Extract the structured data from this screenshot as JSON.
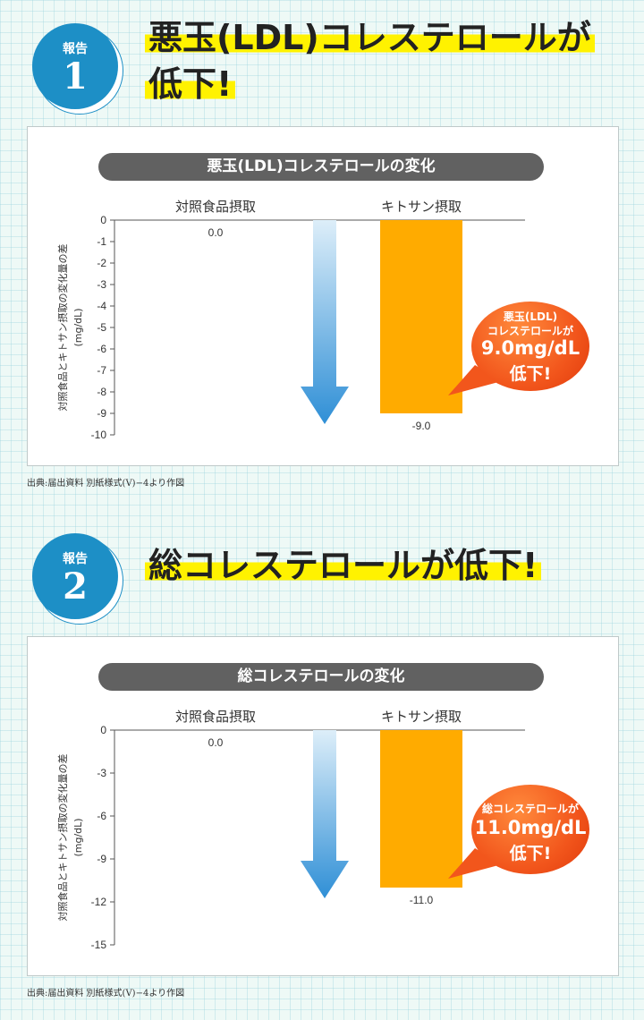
{
  "reports": [
    {
      "badge_label": "報告",
      "badge_number": "1",
      "headline_line1": "悪玉(LDL)コレステロールが",
      "headline_line2": "低下!",
      "chart_title": "悪玉(LDL)コレステロールの変化",
      "source": "出典:届出資料 別紙様式(V)−4より作図",
      "callout": {
        "line1": "悪玉(LDL)",
        "line2": "コレステロールが",
        "big": "9.0mg/dL",
        "line4": "低下!"
      }
    },
    {
      "badge_label": "報告",
      "badge_number": "2",
      "headline_line1": "総コレステロールが低下!",
      "chart_title": "総コレステロールの変化",
      "source": "出典:届出資料 別紙様式(V)−4より作図",
      "callout": {
        "line1": "総コレステロールが",
        "big": "11.0mg/dL",
        "line4": "低下!"
      }
    }
  ],
  "colors": {
    "badge": "#1d8fc6",
    "highlight": "#fff200",
    "bar": "#ffab00",
    "arrow": "#2f8fd6",
    "callout": "#f2561c",
    "pill": "#616161"
  },
  "chart_data": [
    {
      "type": "bar",
      "title": "悪玉(LDL)コレステロールの変化",
      "categories": [
        "対照食品摂取",
        "キトサン摂取"
      ],
      "values": [
        0.0,
        -9.0
      ],
      "value_labels": [
        "0.0",
        "-9.0"
      ],
      "ylabel": "対照食品とキトサン摂取の変化量の差 (mg/dL)",
      "ylim": [
        -10,
        0
      ],
      "yticks": [
        0,
        -1,
        -2,
        -3,
        -4,
        -5,
        -6,
        -7,
        -8,
        -9,
        -10
      ],
      "grid": false,
      "annotation": "downward arrow between bars"
    },
    {
      "type": "bar",
      "title": "総コレステロールの変化",
      "categories": [
        "対照食品摂取",
        "キトサン摂取"
      ],
      "values": [
        0.0,
        -11.0
      ],
      "value_labels": [
        "0.0",
        "-11.0"
      ],
      "ylabel": "対照食品とキトサン摂取の変化量の差 (mg/dL)",
      "ylim": [
        -15,
        0
      ],
      "yticks": [
        0,
        -3,
        -6,
        -9,
        -12,
        -15
      ],
      "grid": false,
      "annotation": "downward arrow between bars"
    }
  ]
}
